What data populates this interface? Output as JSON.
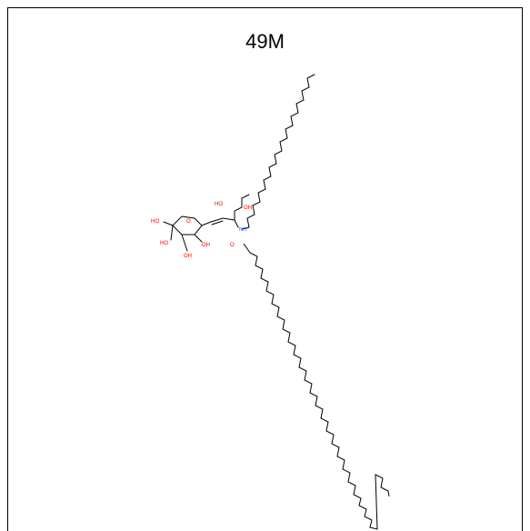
{
  "title": "49M",
  "atom_labels": {
    "oh": "OH",
    "ho": "HO",
    "ring_o": "O",
    "nh": "NH",
    "carbonyl_o": "O"
  },
  "colors": {
    "bond": "#000000",
    "oxygen": "#ff0000",
    "nitrogen": "#3050f8"
  }
}
